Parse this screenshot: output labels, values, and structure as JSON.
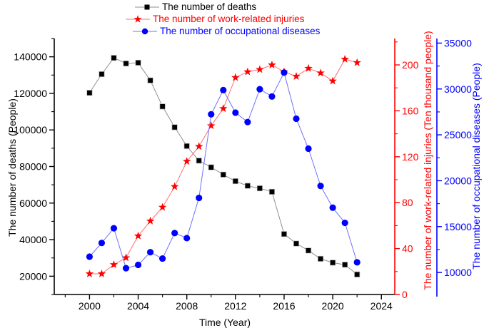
{
  "chart_data": {
    "type": "line",
    "title": "",
    "x": [
      2000,
      2001,
      2002,
      2003,
      2004,
      2005,
      2006,
      2007,
      2008,
      2009,
      2010,
      2011,
      2012,
      2013,
      2014,
      2015,
      2016,
      2017,
      2018,
      2019,
      2020,
      2021,
      2022
    ],
    "series": [
      {
        "name": "The number of deaths",
        "axis": "left",
        "marker": "square",
        "color": "#000000",
        "line_color": "#8f8f8f",
        "values": [
          120300,
          130491,
          139393,
          136340,
          136755,
          127089,
          112822,
          101480,
          91172,
          83196,
          79552,
          75572,
          71983,
          69434,
          68061,
          66182,
          43062,
          37852,
          34046,
          29519,
          27412,
          26307,
          20963
        ]
      },
      {
        "name": "The number of work-related injuries",
        "axis": "right1",
        "marker": "star",
        "color": "#ff0000",
        "line_color": "#ff7070",
        "values": [
          18,
          18,
          26,
          32,
          51,
          64,
          76,
          94,
          116,
          129,
          147,
          162,
          189,
          194,
          196,
          200,
          194,
          190,
          197,
          193,
          186,
          205,
          202
        ]
      },
      {
        "name": "The number of occupational diseases",
        "axis": "right2",
        "marker": "circle",
        "color": "#0000ff",
        "line_color": "#7070ff",
        "values": [
          11718,
          13218,
          14821,
          10467,
          10829,
          12212,
          11519,
          14296,
          13744,
          18128,
          27240,
          29879,
          27420,
          26393,
          29972,
          29180,
          31789,
          26756,
          23497,
          19428,
          17064,
          15407,
          11108
        ]
      }
    ],
    "axes": {
      "x": {
        "label": "Time (Year)",
        "min": 1997.1,
        "max": 2025.1,
        "major_ticks": [
          2000,
          2004,
          2008,
          2012,
          2016,
          2020,
          2024
        ],
        "minor_ticks": [
          1998,
          2002,
          2006,
          2010,
          2014,
          2018,
          2022
        ]
      },
      "left": {
        "label": "The number of deaths (People)",
        "color": "#000000",
        "min": 10000,
        "max": 150000,
        "major_ticks": [
          20000,
          40000,
          60000,
          80000,
          100000,
          120000,
          140000
        ],
        "minor_ticks": [
          10000,
          30000,
          50000,
          70000,
          90000,
          110000,
          130000,
          150000
        ]
      },
      "right1": {
        "label": "The number of work-related injuries (Ten thousand people)",
        "color": "#ff0000",
        "min": 0,
        "max": 223,
        "major_ticks": [
          0,
          40,
          80,
          120,
          160,
          200
        ],
        "minor_ticks": [
          20,
          60,
          100,
          140,
          180,
          220
        ]
      },
      "right2": {
        "label": "The number of occupational diseases (People)",
        "color": "#0000ff",
        "min": 7600,
        "max": 35500,
        "major_ticks": [
          10000,
          15000,
          20000,
          25000,
          30000,
          35000
        ],
        "minor_ticks": [
          12500,
          17500,
          22500,
          27500,
          32500
        ]
      }
    },
    "legend": {
      "position": "top-center",
      "entries": [
        "The number of deaths",
        "The number of work-related injuries",
        "The number of occupational diseases"
      ]
    },
    "grid": false
  }
}
